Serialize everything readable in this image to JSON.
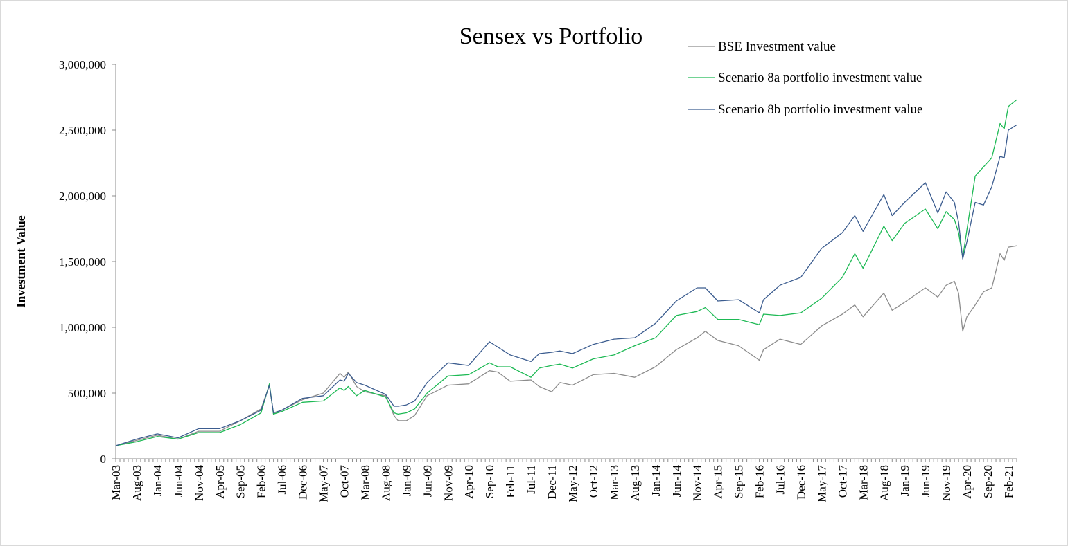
{
  "chart_data": {
    "type": "line",
    "title": "Sensex vs Portfolio",
    "xlabel": "",
    "ylabel": "Investment Value",
    "ylim": [
      0,
      3000000
    ],
    "yticks": [
      0,
      500000,
      1000000,
      1500000,
      2000000,
      2500000,
      3000000
    ],
    "ytick_labels": [
      "0",
      "500,000",
      "1,000,000",
      "1,500,000",
      "2,000,000",
      "2,500,000",
      "3,000,000"
    ],
    "x_start": "Mar-03",
    "x_end": "Apr-21",
    "x_tick_labels": [
      "Mar-03",
      "Aug-03",
      "Jan-04",
      "Jun-04",
      "Nov-04",
      "Apr-05",
      "Sep-05",
      "Feb-06",
      "Jul-06",
      "Dec-06",
      "May-07",
      "Oct-07",
      "Mar-08",
      "Aug-08",
      "Jan-09",
      "Jun-09",
      "Nov-09",
      "Apr-10",
      "Sep-10",
      "Feb-11",
      "Jul-11",
      "Dec-11",
      "May-12",
      "Oct-12",
      "Mar-13",
      "Aug-13",
      "Jan-14",
      "Jun-14",
      "Nov-14",
      "Apr-15",
      "Sep-15",
      "Feb-16",
      "Jul-16",
      "Dec-16",
      "May-17",
      "Oct-17",
      "Mar-18",
      "Aug-18",
      "Jan-19",
      "Jun-19",
      "Nov-19",
      "Apr-20",
      "Sep-20",
      "Feb-21"
    ],
    "grid": false,
    "legend_position": "top-right",
    "series": [
      {
        "name": "BSE Investment value",
        "color": "#8c8c8c",
        "points": [
          [
            "Mar-03",
            100000
          ],
          [
            "Aug-03",
            140000
          ],
          [
            "Jan-04",
            180000
          ],
          [
            "Jun-04",
            150000
          ],
          [
            "Nov-04",
            210000
          ],
          [
            "Apr-05",
            210000
          ],
          [
            "Sep-05",
            290000
          ],
          [
            "Feb-06",
            380000
          ],
          [
            "Apr-06",
            560000
          ],
          [
            "May-06",
            340000
          ],
          [
            "Jul-06",
            370000
          ],
          [
            "Dec-06",
            450000
          ],
          [
            "May-07",
            500000
          ],
          [
            "Sep-07",
            650000
          ],
          [
            "Oct-07",
            620000
          ],
          [
            "Nov-07",
            660000
          ],
          [
            "Jan-08",
            550000
          ],
          [
            "Mar-08",
            510000
          ],
          [
            "Aug-08",
            480000
          ],
          [
            "Oct-08",
            330000
          ],
          [
            "Nov-08",
            290000
          ],
          [
            "Jan-09",
            290000
          ],
          [
            "Mar-09",
            330000
          ],
          [
            "Jun-09",
            480000
          ],
          [
            "Nov-09",
            560000
          ],
          [
            "Apr-10",
            570000
          ],
          [
            "Sep-10",
            670000
          ],
          [
            "Nov-10",
            660000
          ],
          [
            "Feb-11",
            590000
          ],
          [
            "Jul-11",
            600000
          ],
          [
            "Sep-11",
            550000
          ],
          [
            "Dec-11",
            510000
          ],
          [
            "Feb-12",
            580000
          ],
          [
            "May-12",
            560000
          ],
          [
            "Oct-12",
            640000
          ],
          [
            "Mar-13",
            650000
          ],
          [
            "Aug-13",
            620000
          ],
          [
            "Jan-14",
            700000
          ],
          [
            "Jun-14",
            830000
          ],
          [
            "Nov-14",
            920000
          ],
          [
            "Jan-15",
            970000
          ],
          [
            "Apr-15",
            900000
          ],
          [
            "Sep-15",
            860000
          ],
          [
            "Feb-16",
            750000
          ],
          [
            "Mar-16",
            830000
          ],
          [
            "Jul-16",
            910000
          ],
          [
            "Dec-16",
            870000
          ],
          [
            "May-17",
            1010000
          ],
          [
            "Oct-17",
            1100000
          ],
          [
            "Jan-18",
            1170000
          ],
          [
            "Mar-18",
            1080000
          ],
          [
            "Aug-18",
            1260000
          ],
          [
            "Oct-18",
            1130000
          ],
          [
            "Jan-19",
            1190000
          ],
          [
            "Jun-19",
            1300000
          ],
          [
            "Sep-19",
            1230000
          ],
          [
            "Nov-19",
            1320000
          ],
          [
            "Jan-20",
            1350000
          ],
          [
            "Feb-20",
            1260000
          ],
          [
            "Mar-20",
            970000
          ],
          [
            "Apr-20",
            1080000
          ],
          [
            "Jun-20",
            1170000
          ],
          [
            "Aug-20",
            1270000
          ],
          [
            "Oct-20",
            1300000
          ],
          [
            "Dec-20",
            1560000
          ],
          [
            "Jan-21",
            1510000
          ],
          [
            "Feb-21",
            1610000
          ],
          [
            "Apr-21",
            1620000
          ]
        ]
      },
      {
        "name": "Scenario 8a portfolio investment value",
        "color": "#1db954",
        "points": [
          [
            "Mar-03",
            100000
          ],
          [
            "Aug-03",
            130000
          ],
          [
            "Jan-04",
            170000
          ],
          [
            "Jun-04",
            150000
          ],
          [
            "Nov-04",
            200000
          ],
          [
            "Apr-05",
            200000
          ],
          [
            "Sep-05",
            260000
          ],
          [
            "Feb-06",
            350000
          ],
          [
            "Apr-06",
            570000
          ],
          [
            "May-06",
            340000
          ],
          [
            "Jul-06",
            360000
          ],
          [
            "Dec-06",
            430000
          ],
          [
            "May-07",
            440000
          ],
          [
            "Sep-07",
            540000
          ],
          [
            "Oct-07",
            520000
          ],
          [
            "Nov-07",
            550000
          ],
          [
            "Jan-08",
            480000
          ],
          [
            "Mar-08",
            520000
          ],
          [
            "Aug-08",
            470000
          ],
          [
            "Oct-08",
            350000
          ],
          [
            "Nov-08",
            340000
          ],
          [
            "Jan-09",
            350000
          ],
          [
            "Mar-09",
            380000
          ],
          [
            "Jun-09",
            500000
          ],
          [
            "Nov-09",
            630000
          ],
          [
            "Apr-10",
            640000
          ],
          [
            "Sep-10",
            730000
          ],
          [
            "Nov-10",
            700000
          ],
          [
            "Feb-11",
            700000
          ],
          [
            "Jul-11",
            620000
          ],
          [
            "Sep-11",
            690000
          ],
          [
            "Dec-11",
            710000
          ],
          [
            "Feb-12",
            720000
          ],
          [
            "May-12",
            690000
          ],
          [
            "Oct-12",
            760000
          ],
          [
            "Mar-13",
            790000
          ],
          [
            "Aug-13",
            860000
          ],
          [
            "Jan-14",
            920000
          ],
          [
            "Jun-14",
            1090000
          ],
          [
            "Nov-14",
            1120000
          ],
          [
            "Jan-15",
            1150000
          ],
          [
            "Apr-15",
            1060000
          ],
          [
            "Sep-15",
            1060000
          ],
          [
            "Feb-16",
            1020000
          ],
          [
            "Mar-16",
            1100000
          ],
          [
            "Jul-16",
            1090000
          ],
          [
            "Dec-16",
            1110000
          ],
          [
            "May-17",
            1220000
          ],
          [
            "Oct-17",
            1380000
          ],
          [
            "Jan-18",
            1560000
          ],
          [
            "Mar-18",
            1450000
          ],
          [
            "Aug-18",
            1770000
          ],
          [
            "Oct-18",
            1660000
          ],
          [
            "Jan-19",
            1790000
          ],
          [
            "Jun-19",
            1900000
          ],
          [
            "Sep-19",
            1750000
          ],
          [
            "Nov-19",
            1880000
          ],
          [
            "Jan-20",
            1820000
          ],
          [
            "Feb-20",
            1720000
          ],
          [
            "Mar-20",
            1530000
          ],
          [
            "Apr-20",
            1740000
          ],
          [
            "Jun-20",
            2150000
          ],
          [
            "Aug-20",
            2220000
          ],
          [
            "Oct-20",
            2290000
          ],
          [
            "Dec-20",
            2550000
          ],
          [
            "Jan-21",
            2510000
          ],
          [
            "Feb-21",
            2680000
          ],
          [
            "Apr-21",
            2730000
          ]
        ]
      },
      {
        "name": "Scenario 8b portfolio investment value",
        "color": "#3b5c8f",
        "points": [
          [
            "Mar-03",
            100000
          ],
          [
            "Aug-03",
            150000
          ],
          [
            "Jan-04",
            190000
          ],
          [
            "Jun-04",
            160000
          ],
          [
            "Nov-04",
            230000
          ],
          [
            "Apr-05",
            230000
          ],
          [
            "Sep-05",
            290000
          ],
          [
            "Feb-06",
            370000
          ],
          [
            "Apr-06",
            560000
          ],
          [
            "May-06",
            350000
          ],
          [
            "Jul-06",
            370000
          ],
          [
            "Dec-06",
            460000
          ],
          [
            "May-07",
            480000
          ],
          [
            "Sep-07",
            600000
          ],
          [
            "Oct-07",
            590000
          ],
          [
            "Nov-07",
            650000
          ],
          [
            "Jan-08",
            580000
          ],
          [
            "Mar-08",
            560000
          ],
          [
            "Aug-08",
            490000
          ],
          [
            "Oct-08",
            400000
          ],
          [
            "Nov-08",
            400000
          ],
          [
            "Jan-09",
            410000
          ],
          [
            "Mar-09",
            440000
          ],
          [
            "Jun-09",
            580000
          ],
          [
            "Nov-09",
            730000
          ],
          [
            "Apr-10",
            710000
          ],
          [
            "Sep-10",
            890000
          ],
          [
            "Nov-10",
            850000
          ],
          [
            "Feb-11",
            790000
          ],
          [
            "Jul-11",
            740000
          ],
          [
            "Sep-11",
            800000
          ],
          [
            "Dec-11",
            810000
          ],
          [
            "Feb-12",
            820000
          ],
          [
            "May-12",
            800000
          ],
          [
            "Oct-12",
            870000
          ],
          [
            "Mar-13",
            910000
          ],
          [
            "Aug-13",
            920000
          ],
          [
            "Jan-14",
            1030000
          ],
          [
            "Jun-14",
            1200000
          ],
          [
            "Nov-14",
            1300000
          ],
          [
            "Jan-15",
            1300000
          ],
          [
            "Apr-15",
            1200000
          ],
          [
            "Sep-15",
            1210000
          ],
          [
            "Feb-16",
            1110000
          ],
          [
            "Mar-16",
            1210000
          ],
          [
            "Jul-16",
            1320000
          ],
          [
            "Dec-16",
            1380000
          ],
          [
            "May-17",
            1600000
          ],
          [
            "Oct-17",
            1720000
          ],
          [
            "Jan-18",
            1850000
          ],
          [
            "Mar-18",
            1730000
          ],
          [
            "Aug-18",
            2010000
          ],
          [
            "Oct-18",
            1850000
          ],
          [
            "Jan-19",
            1950000
          ],
          [
            "Jun-19",
            2100000
          ],
          [
            "Sep-19",
            1870000
          ],
          [
            "Nov-19",
            2030000
          ],
          [
            "Jan-20",
            1950000
          ],
          [
            "Feb-20",
            1800000
          ],
          [
            "Mar-20",
            1520000
          ],
          [
            "Apr-20",
            1650000
          ],
          [
            "Jun-20",
            1950000
          ],
          [
            "Aug-20",
            1930000
          ],
          [
            "Oct-20",
            2070000
          ],
          [
            "Dec-20",
            2300000
          ],
          [
            "Jan-21",
            2290000
          ],
          [
            "Feb-21",
            2500000
          ],
          [
            "Apr-21",
            2540000
          ]
        ]
      }
    ]
  }
}
